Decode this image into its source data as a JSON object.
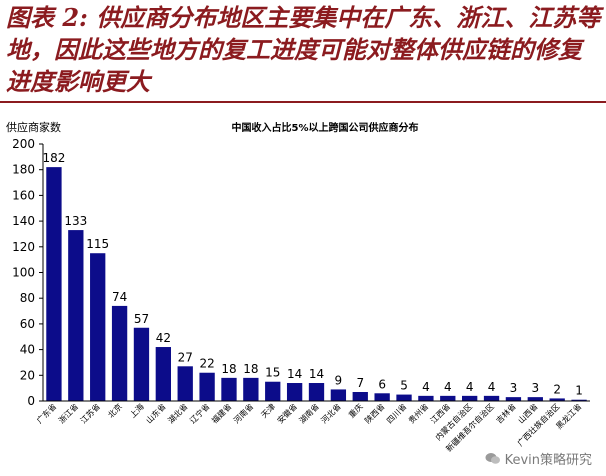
{
  "heading": "图表 2: 供应商分布地区主要集中在广东、浙江、江苏等地，因此这些地方的复工进度可能对整体供应链的修复进度影响更大",
  "watermark": "Kevin策略研究",
  "colors": {
    "heading": "#8b1b1f",
    "bar": "#0c0c8a",
    "axis": "#000000"
  },
  "chart_data": {
    "type": "bar",
    "title": "中国收入占比5%以上跨国公司供应商分布",
    "ylabel": "供应商家数",
    "xlabel": "",
    "ylim": [
      0,
      200
    ],
    "yticks": [
      0,
      20,
      40,
      60,
      80,
      100,
      120,
      140,
      160,
      180,
      200
    ],
    "grid": false,
    "categories": [
      "广东省",
      "浙江省",
      "江苏省",
      "北京",
      "上海",
      "山东省",
      "湖北省",
      "辽宁省",
      "福建省",
      "河南省",
      "天津",
      "安徽省",
      "湖南省",
      "河北省",
      "重庆",
      "陕西省",
      "四川省",
      "贵州省",
      "江西省",
      "内蒙古自治区",
      "新疆维吾尔自治区",
      "吉林省",
      "山西省",
      "广西壮族自治区",
      "黑龙江省"
    ],
    "values": [
      182,
      133,
      115,
      74,
      57,
      42,
      27,
      22,
      18,
      18,
      15,
      14,
      14,
      9,
      7,
      6,
      5,
      4,
      4,
      4,
      4,
      3,
      3,
      2,
      1
    ]
  }
}
